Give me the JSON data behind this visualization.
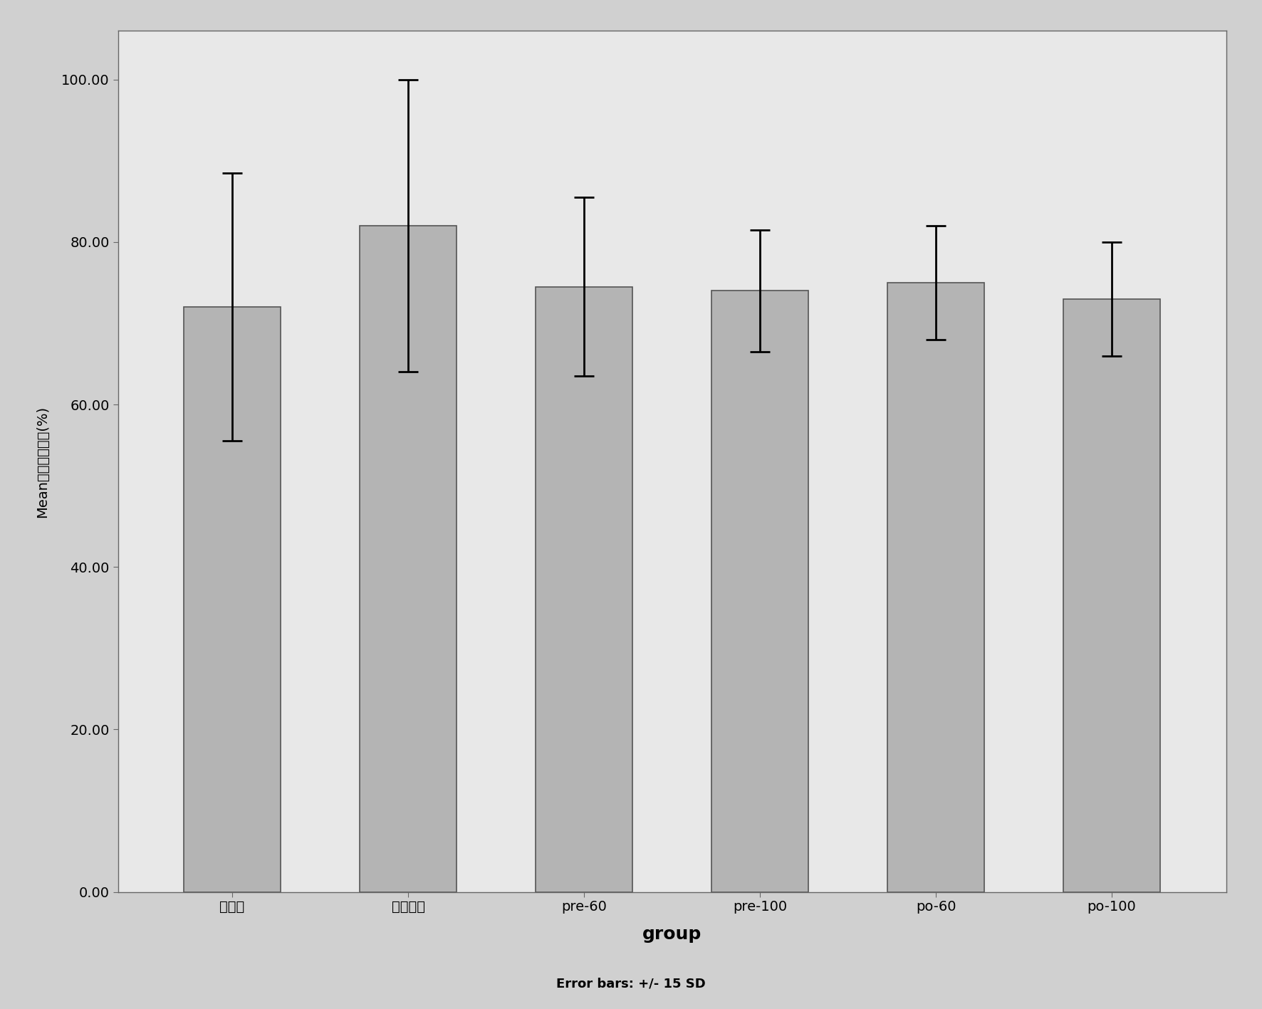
{
  "categories": [
    "对照组",
    "脑出血组",
    "pre-60",
    "pre-100",
    "po-60",
    "po-100"
  ],
  "values": [
    72.0,
    82.0,
    74.5,
    74.0,
    75.0,
    73.0
  ],
  "errors": [
    16.5,
    18.0,
    11.0,
    7.5,
    7.0,
    7.0
  ],
  "bar_color": "#b4b4b4",
  "bar_edgecolor": "#555555",
  "errorbar_color": "#000000",
  "fig_background_color": "#d0d0d0",
  "plot_background_color": "#e8e8e8",
  "ylabel_prefix": "Mean",
  "ylabel_chinese": "脑组织含水量(%)",
  "xlabel": "group",
  "footer": "Error bars: +/- 15 SD",
  "ylim": [
    0,
    106
  ],
  "yticks": [
    0.0,
    20.0,
    40.0,
    60.0,
    80.0,
    100.0
  ],
  "ytick_labels": [
    "0.00",
    "20.00",
    "40.00",
    "60.00",
    "80.00",
    "100.00"
  ],
  "xlabel_fontsize": 18,
  "ylabel_fontsize": 14,
  "tick_fontsize": 14,
  "footer_fontsize": 13,
  "bar_width": 0.55
}
